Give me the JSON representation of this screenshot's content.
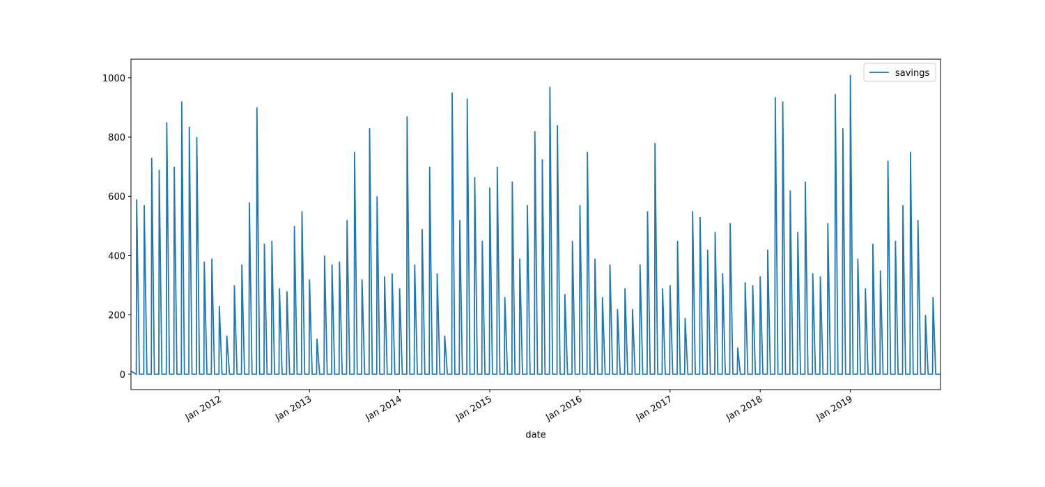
{
  "chart_data": {
    "type": "line",
    "x_label": "date",
    "xlim": [
      2011.02,
      2020.0
    ],
    "xticks": [
      {
        "value": 2012,
        "label": "Jan 2012"
      },
      {
        "value": 2013,
        "label": "Jan 2013"
      },
      {
        "value": 2014,
        "label": "Jan 2014"
      },
      {
        "value": 2015,
        "label": "Jan 2015"
      },
      {
        "value": 2016,
        "label": "Jan 2016"
      },
      {
        "value": 2017,
        "label": "Jan 2017"
      },
      {
        "value": 2018,
        "label": "Jan 2018"
      },
      {
        "value": 2019,
        "label": "Jan 2019"
      }
    ],
    "ylim": [
      -52,
      1063
    ],
    "yticks": [
      0,
      200,
      400,
      600,
      800,
      1000
    ],
    "legend": "upper right",
    "grid": false,
    "x": [
      2011.02,
      2011.079,
      2011.083,
      2011.113,
      2011.162,
      2011.167,
      2011.197,
      2011.246,
      2011.25,
      2011.28,
      2011.329,
      2011.333,
      2011.363,
      2011.412,
      2011.417,
      2011.447,
      2011.496,
      2011.5,
      2011.53,
      2011.579,
      2011.583,
      2011.613,
      2011.662,
      2011.667,
      2011.697,
      2011.746,
      2011.75,
      2011.78,
      2011.829,
      2011.833,
      2011.863,
      2011.912,
      2011.917,
      2011.947,
      2011.996,
      2012,
      2012.03,
      2012.079,
      2012.083,
      2012.113,
      2012.162,
      2012.167,
      2012.197,
      2012.246,
      2012.25,
      2012.28,
      2012.329,
      2012.333,
      2012.363,
      2012.412,
      2012.417,
      2012.447,
      2012.496,
      2012.5,
      2012.53,
      2012.579,
      2012.583,
      2012.613,
      2012.662,
      2012.667,
      2012.697,
      2012.746,
      2012.75,
      2012.78,
      2012.829,
      2012.833,
      2012.863,
      2012.912,
      2012.917,
      2012.947,
      2012.996,
      2013,
      2013.03,
      2013.079,
      2013.083,
      2013.113,
      2013.162,
      2013.167,
      2013.197,
      2013.246,
      2013.25,
      2013.28,
      2013.329,
      2013.333,
      2013.363,
      2013.412,
      2013.417,
      2013.447,
      2013.496,
      2013.5,
      2013.53,
      2013.579,
      2013.583,
      2013.613,
      2013.662,
      2013.667,
      2013.697,
      2013.746,
      2013.75,
      2013.78,
      2013.829,
      2013.833,
      2013.863,
      2013.912,
      2013.917,
      2013.947,
      2013.996,
      2014,
      2014.03,
      2014.079,
      2014.083,
      2014.113,
      2014.162,
      2014.167,
      2014.197,
      2014.246,
      2014.25,
      2014.28,
      2014.329,
      2014.333,
      2014.363,
      2014.412,
      2014.417,
      2014.447,
      2014.496,
      2014.5,
      2014.53,
      2014.579,
      2014.583,
      2014.613,
      2014.662,
      2014.667,
      2014.697,
      2014.746,
      2014.75,
      2014.78,
      2014.829,
      2014.833,
      2014.863,
      2014.912,
      2014.917,
      2014.947,
      2014.996,
      2015,
      2015.03,
      2015.079,
      2015.083,
      2015.113,
      2015.162,
      2015.167,
      2015.197,
      2015.246,
      2015.25,
      2015.28,
      2015.329,
      2015.333,
      2015.363,
      2015.412,
      2015.417,
      2015.447,
      2015.496,
      2015.5,
      2015.53,
      2015.579,
      2015.583,
      2015.613,
      2015.662,
      2015.667,
      2015.697,
      2015.746,
      2015.75,
      2015.78,
      2015.829,
      2015.833,
      2015.863,
      2015.912,
      2015.917,
      2015.947,
      2015.996,
      2016,
      2016.03,
      2016.079,
      2016.083,
      2016.113,
      2016.162,
      2016.167,
      2016.197,
      2016.246,
      2016.25,
      2016.28,
      2016.329,
      2016.333,
      2016.363,
      2016.412,
      2016.417,
      2016.447,
      2016.496,
      2016.5,
      2016.53,
      2016.579,
      2016.583,
      2016.613,
      2016.662,
      2016.667,
      2016.697,
      2016.746,
      2016.75,
      2016.78,
      2016.829,
      2016.833,
      2016.863,
      2016.912,
      2016.917,
      2016.947,
      2016.996,
      2017,
      2017.03,
      2017.079,
      2017.083,
      2017.113,
      2017.162,
      2017.167,
      2017.197,
      2017.246,
      2017.25,
      2017.28,
      2017.329,
      2017.333,
      2017.363,
      2017.412,
      2017.417,
      2017.447,
      2017.496,
      2017.5,
      2017.53,
      2017.579,
      2017.583,
      2017.613,
      2017.662,
      2017.667,
      2017.697,
      2017.746,
      2017.75,
      2017.78,
      2017.829,
      2017.833,
      2017.863,
      2017.912,
      2017.917,
      2017.947,
      2017.996,
      2018,
      2018.03,
      2018.079,
      2018.083,
      2018.113,
      2018.162,
      2018.167,
      2018.197,
      2018.246,
      2018.25,
      2018.28,
      2018.329,
      2018.333,
      2018.363,
      2018.412,
      2018.417,
      2018.447,
      2018.496,
      2018.5,
      2018.53,
      2018.579,
      2018.583,
      2018.613,
      2018.662,
      2018.667,
      2018.697,
      2018.746,
      2018.75,
      2018.78,
      2018.829,
      2018.833,
      2018.863,
      2018.912,
      2018.917,
      2018.947,
      2018.996,
      2019,
      2019.03,
      2019.079,
      2019.083,
      2019.113,
      2019.162,
      2019.167,
      2019.197,
      2019.246,
      2019.25,
      2019.28,
      2019.329,
      2019.333,
      2019.363,
      2019.412,
      2019.417,
      2019.447,
      2019.496,
      2019.5,
      2019.53,
      2019.579,
      2019.583,
      2019.613,
      2019.662,
      2019.667,
      2019.697,
      2019.746,
      2019.75,
      2019.78,
      2019.829,
      2019.833,
      2019.863,
      2019.912,
      2019.917,
      2019.947,
      2019.996
    ],
    "series": [
      {
        "name": "savings",
        "color": "#1f77b4",
        "values": [
          10,
          0,
          590,
          0,
          0,
          570,
          0,
          0,
          730,
          0,
          0,
          690,
          0,
          0,
          850,
          0,
          0,
          700,
          0,
          0,
          920,
          0,
          0,
          835,
          0,
          0,
          800,
          0,
          0,
          380,
          0,
          0,
          390,
          0,
          0,
          230,
          0,
          0,
          130,
          0,
          0,
          300,
          0,
          0,
          370,
          0,
          0,
          580,
          0,
          0,
          900,
          0,
          0,
          440,
          0,
          0,
          450,
          0,
          0,
          290,
          0,
          0,
          280,
          0,
          0,
          500,
          0,
          0,
          550,
          0,
          0,
          320,
          0,
          0,
          120,
          0,
          0,
          400,
          0,
          0,
          370,
          0,
          0,
          380,
          0,
          0,
          520,
          0,
          0,
          750,
          0,
          0,
          320,
          0,
          0,
          830,
          0,
          0,
          600,
          0,
          0,
          330,
          0,
          0,
          340,
          0,
          0,
          290,
          0,
          0,
          870,
          0,
          0,
          370,
          0,
          0,
          490,
          0,
          0,
          700,
          0,
          0,
          340,
          0,
          0,
          130,
          0,
          0,
          950,
          0,
          0,
          520,
          0,
          0,
          930,
          0,
          0,
          665,
          0,
          0,
          450,
          0,
          0,
          630,
          0,
          0,
          700,
          0,
          0,
          260,
          0,
          0,
          650,
          0,
          0,
          390,
          0,
          0,
          570,
          0,
          0,
          820,
          0,
          0,
          725,
          0,
          0,
          970,
          0,
          0,
          840,
          0,
          0,
          270,
          0,
          0,
          450,
          0,
          0,
          570,
          0,
          0,
          750,
          0,
          0,
          390,
          0,
          0,
          260,
          0,
          0,
          370,
          0,
          0,
          220,
          0,
          0,
          290,
          0,
          0,
          220,
          0,
          0,
          370,
          0,
          0,
          550,
          0,
          0,
          780,
          0,
          0,
          290,
          0,
          0,
          300,
          0,
          0,
          450,
          0,
          0,
          190,
          0,
          0,
          550,
          0,
          0,
          530,
          0,
          0,
          420,
          0,
          0,
          480,
          0,
          0,
          340,
          0,
          0,
          510,
          0,
          0,
          90,
          0,
          0,
          310,
          0,
          0,
          300,
          0,
          0,
          330,
          0,
          0,
          420,
          0,
          0,
          935,
          0,
          0,
          920,
          0,
          0,
          620,
          0,
          0,
          480,
          0,
          0,
          650,
          0,
          0,
          340,
          0,
          0,
          330,
          0,
          0,
          510,
          0,
          0,
          945,
          0,
          0,
          830,
          0,
          0,
          1010,
          0,
          0,
          390,
          0,
          0,
          290,
          0,
          0,
          440,
          0,
          0,
          350,
          0,
          0,
          720,
          0,
          0,
          450,
          0,
          0,
          570,
          0,
          0,
          750,
          0,
          0,
          520,
          0,
          0,
          200,
          0,
          0,
          260,
          0,
          0
        ]
      }
    ]
  }
}
